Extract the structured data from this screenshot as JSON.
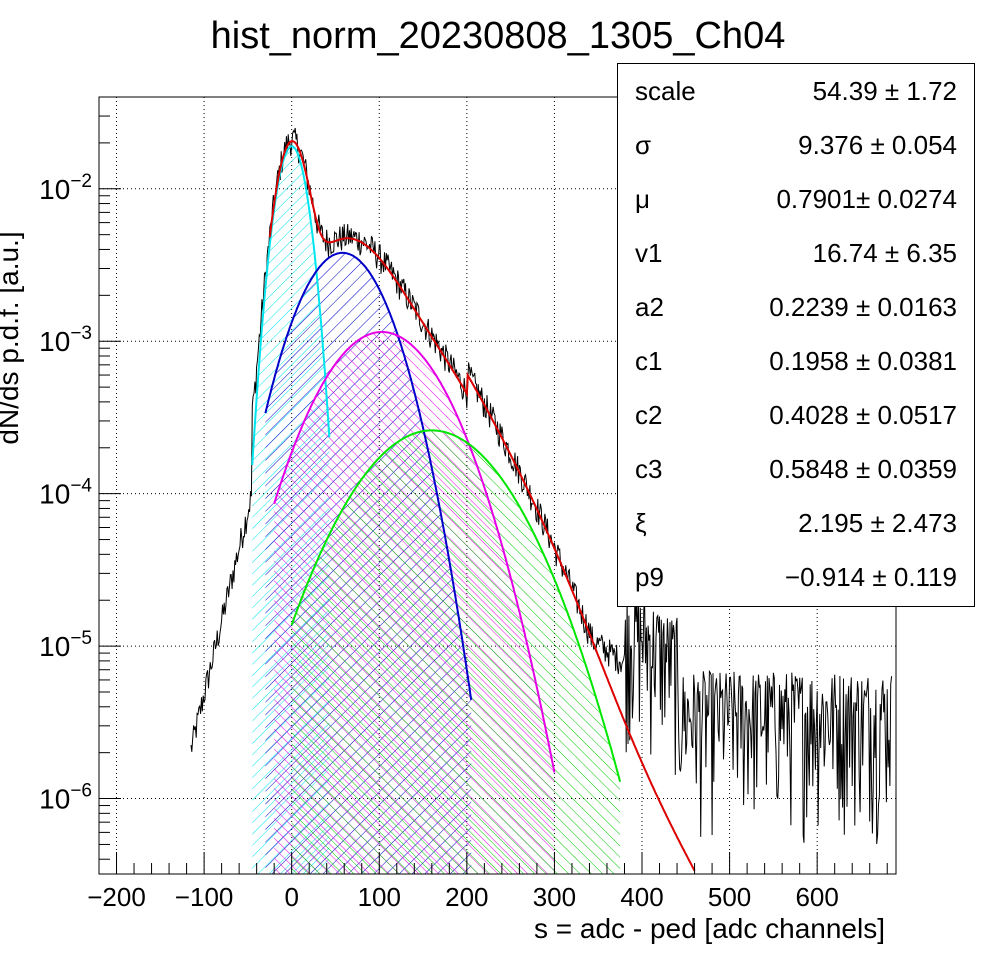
{
  "chart_data": {
    "type": "line",
    "title": "hist_norm_20230808_1305_Ch04",
    "xlabel": "s = adc - ped [adc channels]",
    "ylabel": "dN/ds p.d.f. [a.u.]",
    "xlim": [
      -220,
      690
    ],
    "ylim": [
      3.2e-07,
      0.04
    ],
    "yscale": "log",
    "grid": true,
    "x_ticks": [
      -200,
      -100,
      0,
      100,
      200,
      300,
      400,
      500,
      600
    ],
    "x_tick_labels": [
      "−200",
      "−100",
      "0",
      "100",
      "200",
      "300",
      "400",
      "500",
      "600"
    ],
    "y_ticks": [
      1e-06,
      1e-05,
      0.0001,
      0.001,
      0.01
    ],
    "y_tick_labels": [
      {
        "base": "10",
        "exp": "−6"
      },
      {
        "base": "10",
        "exp": "−5"
      },
      {
        "base": "10",
        "exp": "−4"
      },
      {
        "base": "10",
        "exp": "−3"
      },
      {
        "base": "10",
        "exp": "−2"
      }
    ],
    "series": [
      {
        "color": "#00e5ee",
        "peak_x": 0,
        "peak_y": 0.019,
        "sigma": 14.5,
        "x_range": [
          -45,
          43
        ],
        "hatch": "cyan-hatch"
      },
      {
        "color": "#0000c8",
        "peak_x": 58,
        "peak_y": 0.0038,
        "sigma": 40,
        "x_range": [
          -30,
          205
        ],
        "hatch": "blue-hatch"
      },
      {
        "color": "#e600e6",
        "peak_x": 103,
        "peak_y": 0.00115,
        "sigma": 54,
        "x_range": [
          -20,
          300
        ],
        "hatch": "magenta-hatch"
      },
      {
        "color": "#00e600",
        "peak_x": 160,
        "peak_y": 0.00026,
        "sigma": 66,
        "x_range": [
          0,
          375
        ],
        "hatch": "green-hatch"
      }
    ],
    "total_fit": {
      "color": "#dd0000",
      "x_range": [
        -25,
        460
      ]
    },
    "data_histogram": {
      "color": "#000000",
      "x_range": [
        -115,
        685
      ]
    }
  },
  "stats": [
    {
      "name": "scale",
      "value": "54.39 ± 1.72"
    },
    {
      "name": "σ",
      "value": "9.376 ± 0.054"
    },
    {
      "name": "μ",
      "value": "0.7901± 0.0274"
    },
    {
      "name": "v1",
      "value": "16.74 ± 6.35"
    },
    {
      "name": "a2",
      "value": "0.2239 ± 0.0163"
    },
    {
      "name": "c1",
      "value": "0.1958 ± 0.0381"
    },
    {
      "name": "c2",
      "value": "0.4028 ± 0.0517"
    },
    {
      "name": "c3",
      "value": "0.5848 ± 0.0359"
    },
    {
      "name": "ξ",
      "value": "2.195 ± 2.473"
    },
    {
      "name": "p9",
      "value": "−0.914 ± 0.119"
    }
  ]
}
